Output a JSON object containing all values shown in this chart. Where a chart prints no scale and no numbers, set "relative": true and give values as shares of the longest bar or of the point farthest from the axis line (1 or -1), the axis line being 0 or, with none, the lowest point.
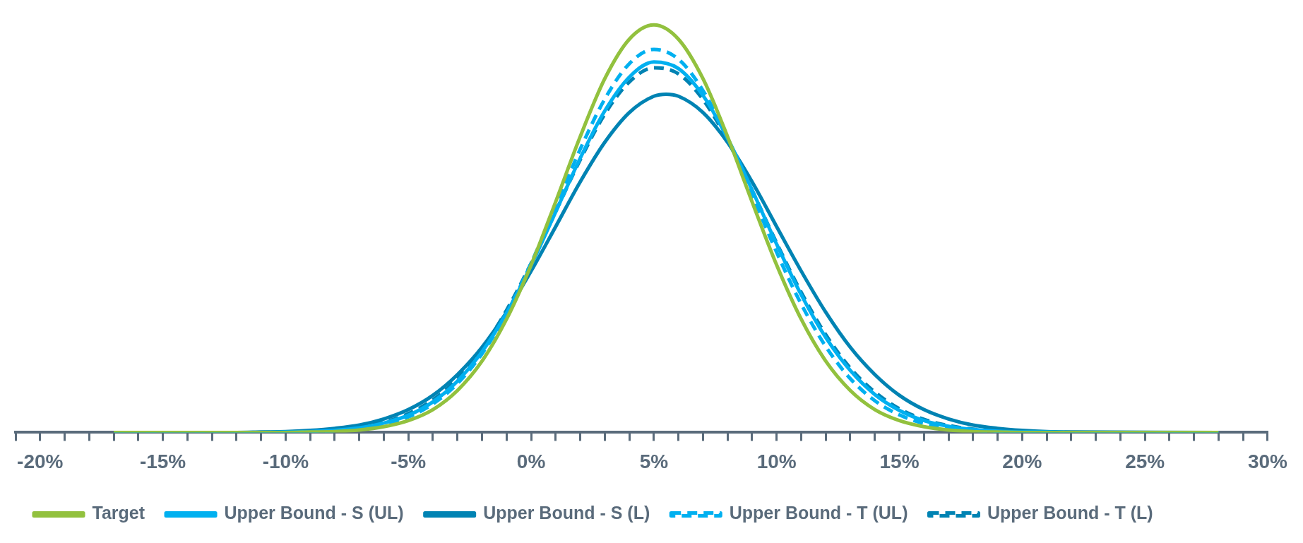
{
  "chart_data": {
    "type": "line",
    "relative": true,
    "legend": "bottom",
    "marker": "none",
    "x": [
      -17,
      -12,
      -11,
      -10,
      -9,
      -8,
      -7,
      -6,
      -5,
      -4,
      -3,
      -2,
      -1,
      0,
      1,
      2,
      3,
      4,
      5,
      6,
      7,
      8,
      9,
      10,
      11,
      12,
      13,
      14,
      15,
      16,
      17,
      18,
      19,
      20,
      21,
      22,
      28
    ],
    "xlim": [
      -21,
      30
    ],
    "xticks": [
      {
        "value": -21,
        "label": null
      },
      {
        "value": -20,
        "label": "-20%"
      },
      {
        "value": -19,
        "label": null
      },
      {
        "value": -18,
        "label": null
      },
      {
        "value": -17,
        "label": null
      },
      {
        "value": -16,
        "label": null
      },
      {
        "value": -15,
        "label": "-15%"
      },
      {
        "value": -14,
        "label": null
      },
      {
        "value": -13,
        "label": null
      },
      {
        "value": -12,
        "label": null
      },
      {
        "value": -11,
        "label": null
      },
      {
        "value": -10,
        "label": "-10%"
      },
      {
        "value": -9,
        "label": null
      },
      {
        "value": -8,
        "label": null
      },
      {
        "value": -7,
        "label": null
      },
      {
        "value": -6,
        "label": null
      },
      {
        "value": -5,
        "label": "-5%"
      },
      {
        "value": -4,
        "label": null
      },
      {
        "value": -3,
        "label": null
      },
      {
        "value": -2,
        "label": null
      },
      {
        "value": -1,
        "label": null
      },
      {
        "value": 0,
        "label": "0%"
      },
      {
        "value": 1,
        "label": null
      },
      {
        "value": 2,
        "label": null
      },
      {
        "value": 3,
        "label": null
      },
      {
        "value": 4,
        "label": null
      },
      {
        "value": 5,
        "label": "5%"
      },
      {
        "value": 6,
        "label": null
      },
      {
        "value": 7,
        "label": null
      },
      {
        "value": 8,
        "label": null
      },
      {
        "value": 9,
        "label": null
      },
      {
        "value": 10,
        "label": "10%"
      },
      {
        "value": 11,
        "label": null
      },
      {
        "value": 12,
        "label": null
      },
      {
        "value": 13,
        "label": null
      },
      {
        "value": 14,
        "label": null
      },
      {
        "value": 15,
        "label": "15%"
      },
      {
        "value": 16,
        "label": null
      },
      {
        "value": 17,
        "label": null
      },
      {
        "value": 18,
        "label": null
      },
      {
        "value": 19,
        "label": null
      },
      {
        "value": 20,
        "label": "20%"
      },
      {
        "value": 21,
        "label": null
      },
      {
        "value": 22,
        "label": null
      },
      {
        "value": 23,
        "label": null
      },
      {
        "value": 24,
        "label": null
      },
      {
        "value": 25,
        "label": "25%"
      },
      {
        "value": 26,
        "label": null
      },
      {
        "value": 27,
        "label": null
      },
      {
        "value": 28,
        "label": null
      },
      {
        "value": 29,
        "label": null
      },
      {
        "value": 30,
        "label": "30%"
      }
    ],
    "series": [
      {
        "name": "Target",
        "color": "#92c13e",
        "line_style": "solid",
        "values": [
          0,
          0,
          0,
          0,
          0.001,
          0.002,
          0.006,
          0.014,
          0.029,
          0.056,
          0.103,
          0.175,
          0.278,
          0.411,
          0.566,
          0.726,
          0.868,
          0.965,
          1,
          0.965,
          0.868,
          0.726,
          0.566,
          0.411,
          0.278,
          0.175,
          0.103,
          0.056,
          0.029,
          0.014,
          0.006,
          0.002,
          0.001,
          0,
          0,
          0,
          0
        ]
      },
      {
        "name": "Upper Bound - S (UL)",
        "color": "#00b0f0",
        "line_style": "solid",
        "values": [
          0,
          0,
          0,
          0.001,
          0.002,
          0.005,
          0.011,
          0.023,
          0.042,
          0.075,
          0.126,
          0.198,
          0.293,
          0.41,
          0.541,
          0.673,
          0.789,
          0.872,
          0.909,
          0.893,
          0.827,
          0.722,
          0.595,
          0.462,
          0.338,
          0.233,
          0.152,
          0.093,
          0.054,
          0.029,
          0.015,
          0.007,
          0.003,
          0.001,
          0.001,
          0,
          0
        ]
      },
      {
        "name": "Upper Bound - S (L)",
        "color": "#0083b3",
        "line_style": "solid",
        "x": [
          -17,
          -12,
          -11,
          -10,
          -9,
          -8,
          -7,
          -6,
          -5,
          -4,
          -3,
          -2,
          -1,
          0,
          1,
          2,
          3,
          4,
          5,
          5.5,
          6,
          7,
          8,
          9,
          10,
          11,
          12,
          13,
          14,
          15,
          16,
          17,
          18,
          19,
          20,
          21,
          22,
          28
        ],
        "values": [
          0,
          0,
          0.001,
          0.002,
          0.005,
          0.01,
          0.018,
          0.033,
          0.056,
          0.091,
          0.142,
          0.209,
          0.295,
          0.396,
          0.505,
          0.615,
          0.712,
          0.785,
          0.825,
          0.83,
          0.825,
          0.785,
          0.712,
          0.615,
          0.505,
          0.396,
          0.295,
          0.209,
          0.142,
          0.091,
          0.056,
          0.033,
          0.018,
          0.01,
          0.005,
          0.002,
          0.001,
          0
        ]
      },
      {
        "name": "Upper Bound - T (UL)",
        "color": "#00b0f0",
        "line_style": "dashed",
        "values": [
          0,
          0,
          0,
          0.001,
          0.002,
          0.004,
          0.009,
          0.02,
          0.038,
          0.07,
          0.12,
          0.193,
          0.292,
          0.415,
          0.554,
          0.695,
          0.818,
          0.905,
          0.94,
          0.916,
          0.839,
          0.722,
          0.583,
          0.442,
          0.315,
          0.211,
          0.132,
          0.078,
          0.043,
          0.022,
          0.011,
          0.005,
          0.002,
          0.001,
          0,
          0,
          0
        ]
      },
      {
        "name": "Upper Bound - T (L)",
        "color": "#0083b3",
        "line_style": "dashed",
        "values": [
          0,
          0,
          0,
          0.001,
          0.003,
          0.006,
          0.013,
          0.025,
          0.046,
          0.08,
          0.132,
          0.205,
          0.3,
          0.415,
          0.542,
          0.669,
          0.781,
          0.86,
          0.895,
          0.88,
          0.817,
          0.717,
          0.594,
          0.465,
          0.344,
          0.24,
          0.158,
          0.099,
          0.058,
          0.032,
          0.017,
          0.008,
          0.004,
          0.002,
          0.001,
          0,
          0
        ]
      }
    ]
  }
}
